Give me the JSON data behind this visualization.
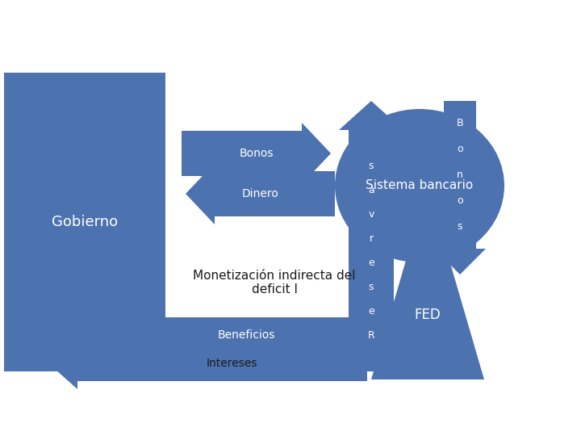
{
  "bg_color": "#ffffff",
  "blue": "#4d72b0",
  "white": "#ffffff",
  "dark": "#1a1a1a",
  "fig_w": 7.2,
  "fig_h": 5.4,
  "dpi": 100,
  "gobierno_label": "Gobierno",
  "bancario_label": "Sistema bancario",
  "bonos_h_label": "Bonos",
  "dinero_label": "Dinero",
  "monetizacion_line1": "Monetización indirecta del",
  "monetizacion_line2": "deficit I",
  "reservas_chars": [
    "R",
    "e",
    "s",
    "e",
    "r",
    "v",
    "a",
    "s"
  ],
  "bonos_v_chars": [
    "B",
    "o",
    "n",
    "o",
    "s"
  ],
  "beneficios_label": "Beneficios",
  "intereses_label": "Intereses",
  "fed_label": "FED"
}
